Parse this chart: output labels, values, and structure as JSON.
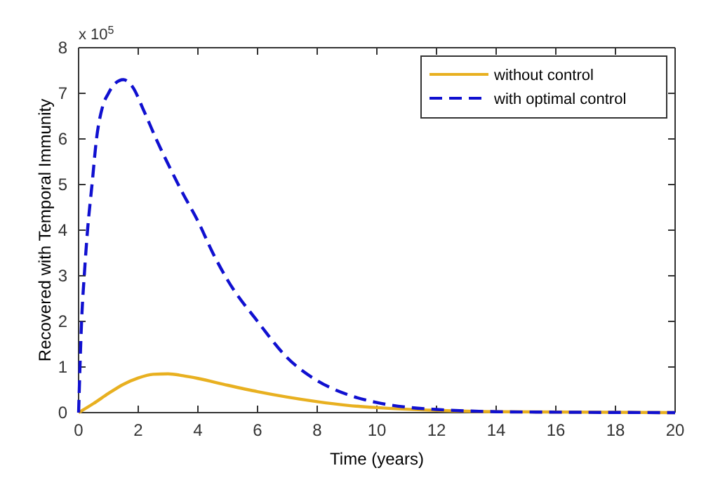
{
  "chart_data": {
    "type": "line",
    "xlabel": "Time (years)",
    "ylabel": "Recovered with Temporal Immunity",
    "annotations": [
      "x 10$^{5}$"
    ],
    "xlim": [
      0,
      20
    ],
    "xticks": [
      0,
      2,
      4,
      6,
      8,
      10,
      12,
      14,
      16,
      18,
      20
    ],
    "ylim": [
      0,
      8
    ],
    "yticks": [
      0,
      1,
      2,
      3,
      4,
      5,
      6,
      7,
      8
    ],
    "grid": false,
    "legend": "top right",
    "marker": "none",
    "series": [
      {
        "name": "without control",
        "color": "#e8b020",
        "line_style": "solid",
        "x": [
          0,
          0.5,
          1,
          1.5,
          2,
          2.5,
          3,
          3.5,
          4,
          5,
          6,
          7,
          8,
          9,
          10,
          12,
          14,
          20
        ],
        "values": [
          0,
          0.2,
          0.42,
          0.62,
          0.76,
          0.84,
          0.85,
          0.81,
          0.75,
          0.6,
          0.46,
          0.34,
          0.24,
          0.16,
          0.11,
          0.05,
          0.02,
          0
        ]
      },
      {
        "name": "with optimal control",
        "color": "#1010d0",
        "line_style": "dashed",
        "x": [
          0,
          0.1,
          0.2,
          0.3,
          0.45,
          0.6,
          0.8,
          1,
          1.2,
          1.5,
          1.8,
          2.2,
          2.6,
          3,
          3.5,
          4,
          4.5,
          5,
          6,
          7,
          8,
          9,
          10,
          11,
          12,
          14,
          16,
          20
        ],
        "values": [
          0,
          2,
          3.1,
          4,
          5,
          6,
          6.7,
          7,
          7.2,
          7.3,
          7.15,
          6.6,
          6,
          5.45,
          4.8,
          4.2,
          3.5,
          2.9,
          2,
          1.2,
          0.7,
          0.4,
          0.22,
          0.12,
          0.07,
          0.02,
          0.01,
          0
        ]
      }
    ]
  }
}
